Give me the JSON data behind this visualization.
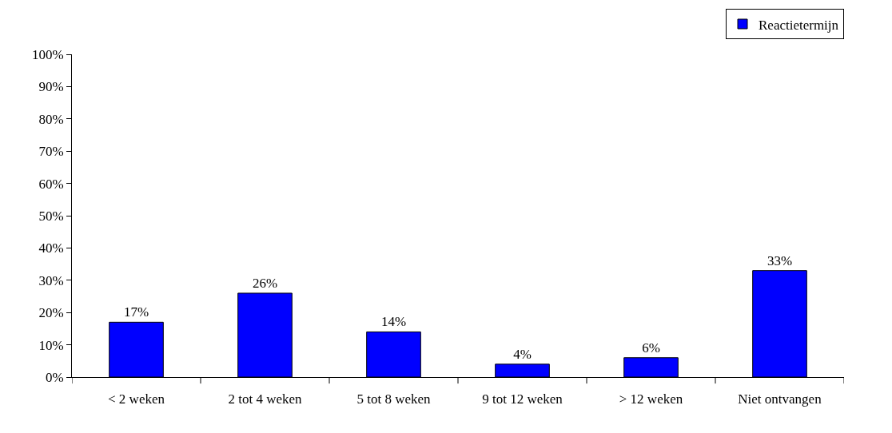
{
  "chart_data": {
    "type": "bar",
    "categories": [
      "< 2 weken",
      "2 tot 4 weken",
      "5 tot 8 weken",
      "9 tot 12 weken",
      "> 12 weken",
      "Niet ontvangen"
    ],
    "series": [
      {
        "name": "Reactietermijn",
        "color": "#0000ff",
        "values": [
          17,
          26,
          14,
          4,
          6,
          33
        ],
        "value_labels": [
          "17%",
          "26%",
          "14%",
          "4%",
          "6%",
          "33%"
        ]
      }
    ],
    "ylim": [
      0,
      100
    ],
    "yticks": [
      {
        "value": 0,
        "label": "0%"
      },
      {
        "value": 10,
        "label": "10%"
      },
      {
        "value": 20,
        "label": "20%"
      },
      {
        "value": 30,
        "label": "30%"
      },
      {
        "value": 40,
        "label": "40%"
      },
      {
        "value": 50,
        "label": "50%"
      },
      {
        "value": 60,
        "label": "60%"
      },
      {
        "value": 70,
        "label": "70%"
      },
      {
        "value": 80,
        "label": "80%"
      },
      {
        "value": 90,
        "label": "90%"
      },
      {
        "value": 100,
        "label": "100%"
      }
    ],
    "grid": false,
    "legend": "top right"
  }
}
